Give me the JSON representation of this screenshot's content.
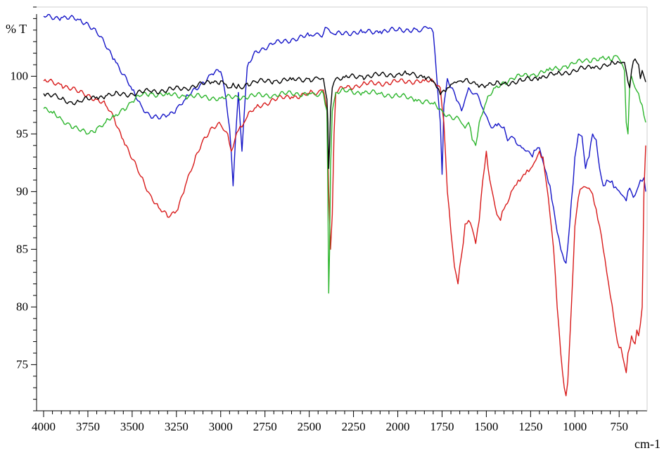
{
  "chart_data": {
    "type": "line",
    "ylabel": "% T",
    "xlabel": "cm-1",
    "x_reversed": true,
    "xlim": [
      4000,
      600
    ],
    "ylim": [
      71,
      106
    ],
    "x_ticks": [
      4000,
      3750,
      3500,
      3250,
      3000,
      2750,
      2500,
      2250,
      2000,
      1750,
      1500,
      1250,
      1000,
      750
    ],
    "x_tick_labels": [
      "4000",
      "3750",
      "3500",
      "3250",
      "3000",
      "2750",
      "2500",
      "2250",
      "2000",
      "1750",
      "1500",
      "1250",
      "1000",
      "750"
    ],
    "y_ticks": [
      75,
      80,
      85,
      90,
      95,
      100
    ],
    "y_tick_labels": [
      "75",
      "80",
      "85",
      "90",
      "95",
      "100"
    ],
    "grid": false,
    "series": [
      {
        "color": "#1515c8",
        "x": [
          4000,
          3900,
          3800,
          3750,
          3700,
          3600,
          3500,
          3450,
          3400,
          3350,
          3300,
          3250,
          3200,
          3100,
          3050,
          3000,
          2980,
          2950,
          2930,
          2915,
          2900,
          2880,
          2860,
          2850,
          2800,
          2700,
          2600,
          2500,
          2420,
          2400,
          2380,
          2350,
          2300,
          2200,
          2100,
          2000,
          1900,
          1820,
          1800,
          1790,
          1760,
          1750,
          1745,
          1740,
          1720,
          1700,
          1660,
          1640,
          1620,
          1600,
          1560,
          1520,
          1480,
          1440,
          1400,
          1380,
          1340,
          1300,
          1260,
          1240,
          1220,
          1200,
          1170,
          1140,
          1110,
          1080,
          1060,
          1050,
          1030,
          1000,
          980,
          960,
          940,
          920,
          900,
          880,
          860,
          840,
          820,
          800,
          770,
          740,
          710,
          690,
          670,
          650,
          630,
          610,
          600
        ],
        "y": [
          105.2,
          105.1,
          104.9,
          104.6,
          103.8,
          101.5,
          98.8,
          97.5,
          96.6,
          96.3,
          96.6,
          97.2,
          98.0,
          99.5,
          100.2,
          100.4,
          99.0,
          95.5,
          90.5,
          95.0,
          98.6,
          93.5,
          98.5,
          100.8,
          102.2,
          102.8,
          103.2,
          103.5,
          103.7,
          104.2,
          103.8,
          103.6,
          103.8,
          103.8,
          103.9,
          104.0,
          104.1,
          104.2,
          103.8,
          102.0,
          96.0,
          91.5,
          94.0,
          97.5,
          99.8,
          99.0,
          97.8,
          97.0,
          98.0,
          99.0,
          98.5,
          97.2,
          95.8,
          95.7,
          95.6,
          94.4,
          94.6,
          93.8,
          93.5,
          93.0,
          93.6,
          93.8,
          92.0,
          90.5,
          87.5,
          85.0,
          84.0,
          83.8,
          87.0,
          93.0,
          95.0,
          94.8,
          92.0,
          93.0,
          95.0,
          94.5,
          92.0,
          90.5,
          91.0,
          90.8,
          90.4,
          89.8,
          89.2,
          90.3,
          89.5,
          90.1,
          91.0,
          91.2,
          90.0
        ]
      },
      {
        "color": "#d81a1a",
        "x": [
          4000,
          3900,
          3800,
          3750,
          3700,
          3650,
          3600,
          3550,
          3500,
          3450,
          3400,
          3350,
          3300,
          3250,
          3200,
          3150,
          3100,
          3050,
          3000,
          2960,
          2940,
          2920,
          2900,
          2880,
          2850,
          2800,
          2700,
          2600,
          2500,
          2420,
          2400,
          2390,
          2380,
          2370,
          2360,
          2350,
          2300,
          2200,
          2100,
          2000,
          1900,
          1850,
          1800,
          1760,
          1740,
          1720,
          1700,
          1680,
          1660,
          1650,
          1640,
          1620,
          1600,
          1580,
          1560,
          1540,
          1520,
          1500,
          1480,
          1460,
          1440,
          1420,
          1400,
          1380,
          1360,
          1340,
          1320,
          1300,
          1280,
          1250,
          1230,
          1200,
          1180,
          1150,
          1120,
          1100,
          1080,
          1060,
          1050,
          1040,
          1020,
          1000,
          980,
          960,
          940,
          920,
          900,
          880,
          860,
          840,
          820,
          800,
          780,
          760,
          740,
          720,
          710,
          700,
          690,
          680,
          670,
          660,
          650,
          640,
          630,
          620,
          610,
          600
        ],
        "y": [
          99.6,
          99.3,
          98.6,
          98.4,
          98.0,
          97.5,
          96.3,
          94.5,
          92.8,
          91.3,
          89.8,
          88.6,
          87.8,
          88.3,
          90.5,
          92.5,
          94.5,
          95.6,
          95.8,
          95.0,
          93.5,
          94.5,
          95.3,
          95.6,
          96.5,
          97.3,
          98.0,
          98.2,
          98.5,
          98.8,
          97.0,
          90.0,
          85.0,
          88.0,
          95.0,
          98.6,
          99.0,
          99.3,
          99.4,
          99.5,
          99.6,
          99.6,
          99.5,
          99.0,
          96.0,
          90.0,
          86.5,
          83.5,
          82.0,
          83.5,
          84.5,
          87.2,
          87.5,
          86.8,
          85.5,
          87.5,
          91.0,
          93.5,
          91.0,
          89.5,
          88.0,
          87.5,
          88.5,
          89.0,
          90.0,
          90.5,
          91.0,
          91.2,
          91.5,
          92.0,
          92.5,
          93.5,
          93.0,
          89.5,
          85.0,
          80.0,
          76.0,
          73.0,
          72.3,
          73.5,
          80.0,
          87.0,
          89.5,
          90.3,
          90.4,
          90.3,
          89.8,
          88.5,
          87.0,
          85.0,
          83.0,
          81.0,
          79.0,
          77.0,
          76.5,
          75.0,
          74.3,
          76.0,
          76.5,
          77.5,
          77.0,
          76.8,
          78.0,
          77.5,
          78.5,
          80.0,
          90.0,
          94.0
        ]
      },
      {
        "color": "#2cb52c",
        "x": [
          4000,
          3950,
          3900,
          3850,
          3800,
          3750,
          3700,
          3650,
          3600,
          3550,
          3500,
          3450,
          3400,
          3300,
          3200,
          3100,
          3000,
          2900,
          2800,
          2700,
          2600,
          2500,
          2420,
          2400,
          2395,
          2390,
          2385,
          2380,
          2370,
          2350,
          2300,
          2200,
          2100,
          2000,
          1900,
          1850,
          1800,
          1750,
          1700,
          1650,
          1620,
          1600,
          1580,
          1560,
          1540,
          1500,
          1450,
          1400,
          1350,
          1300,
          1250,
          1200,
          1150,
          1100,
          1050,
          1000,
          950,
          900,
          850,
          800,
          770,
          750,
          720,
          710,
          700,
          690,
          680,
          660,
          640,
          620,
          600
        ],
        "y": [
          97.2,
          96.8,
          96.3,
          95.8,
          95.3,
          95.0,
          95.5,
          96.0,
          96.5,
          97.2,
          97.8,
          98.3,
          98.5,
          98.4,
          98.3,
          98.2,
          98.1,
          98.2,
          98.3,
          98.4,
          98.5,
          98.5,
          98.5,
          97.0,
          90.0,
          81.2,
          85.0,
          92.0,
          97.0,
          98.6,
          98.7,
          98.6,
          98.5,
          98.3,
          98.0,
          97.8,
          97.6,
          97.0,
          96.5,
          96.2,
          95.5,
          96.0,
          94.5,
          94.0,
          96.0,
          97.8,
          99.0,
          99.5,
          99.8,
          100.0,
          100.1,
          100.3,
          100.5,
          100.7,
          100.9,
          101.1,
          101.3,
          101.5,
          101.6,
          101.4,
          101.8,
          101.5,
          100.5,
          96.0,
          95.0,
          99.5,
          100.0,
          99.0,
          98.5,
          97.5,
          96.0
        ]
      },
      {
        "color": "#000000",
        "x": [
          4000,
          3950,
          3900,
          3850,
          3800,
          3750,
          3700,
          3650,
          3600,
          3500,
          3400,
          3300,
          3200,
          3100,
          3050,
          3000,
          2970,
          2950,
          2930,
          2920,
          2900,
          2880,
          2850,
          2800,
          2700,
          2600,
          2500,
          2420,
          2400,
          2395,
          2390,
          2385,
          2380,
          2370,
          2360,
          2350,
          2300,
          2200,
          2100,
          2000,
          1950,
          1900,
          1850,
          1800,
          1780,
          1760,
          1740,
          1720,
          1700,
          1680,
          1650,
          1600,
          1550,
          1500,
          1450,
          1400,
          1300,
          1200,
          1100,
          1000,
          900,
          800,
          750,
          720,
          700,
          690,
          680,
          670,
          660,
          650,
          640,
          630,
          620,
          610,
          600
        ],
        "y": [
          98.5,
          98.3,
          98.0,
          97.8,
          97.8,
          98.0,
          98.2,
          98.3,
          98.4,
          98.5,
          98.7,
          98.8,
          99.0,
          99.3,
          99.5,
          99.6,
          99.3,
          99.0,
          99.4,
          99.1,
          99.3,
          98.9,
          99.4,
          99.5,
          99.6,
          99.7,
          99.8,
          99.8,
          98.0,
          96.0,
          92.0,
          94.0,
          97.0,
          99.0,
          99.5,
          99.8,
          99.9,
          100.0,
          100.1,
          100.2,
          100.2,
          100.1,
          100.0,
          99.6,
          99.0,
          98.4,
          98.8,
          99.0,
          99.3,
          99.5,
          99.6,
          99.5,
          99.3,
          99.2,
          99.3,
          99.4,
          99.6,
          99.9,
          100.2,
          100.5,
          100.8,
          101.0,
          101.2,
          101.2,
          99.5,
          99.0,
          100.5,
          101.3,
          101.5,
          101.2,
          101.0,
          99.8,
          100.5,
          100.0,
          99.5
        ]
      }
    ]
  }
}
